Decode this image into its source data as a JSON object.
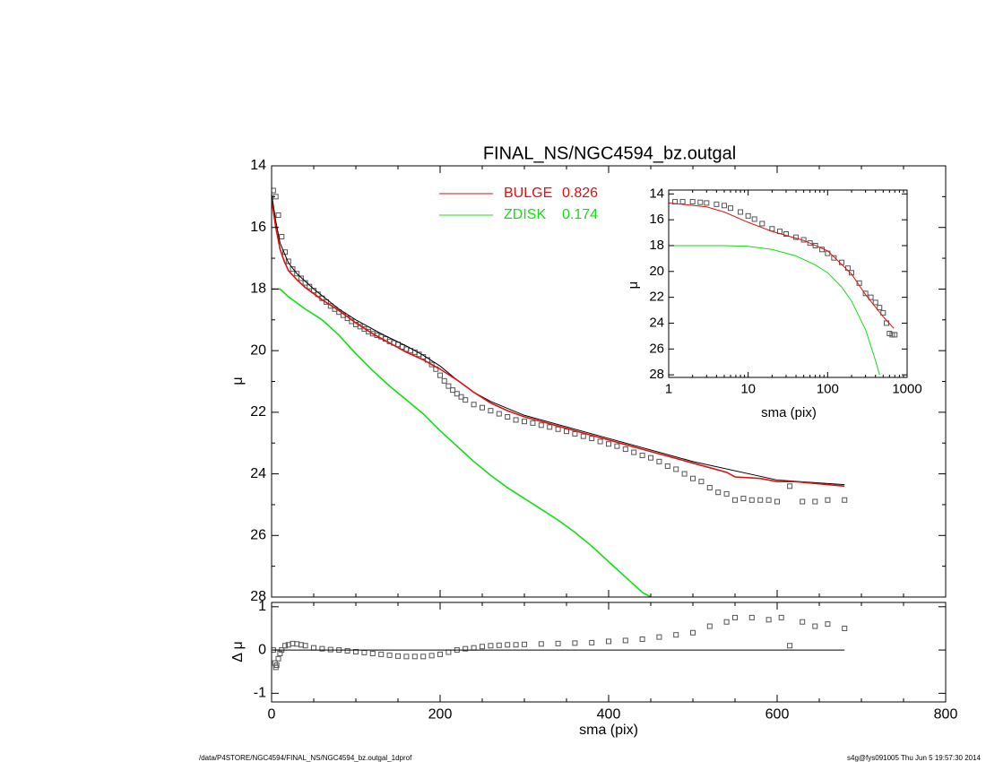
{
  "chart_data": [
    {
      "type": "line",
      "title": "FINAL_NS/NGC4594_bz.outgal",
      "ylabel": "μ",
      "xlim": [
        0,
        800
      ],
      "ylim": [
        28,
        14
      ],
      "xticks": [
        0,
        200,
        400,
        600,
        800
      ],
      "xtick_labels": false,
      "xminor": [
        50,
        100,
        150,
        250,
        300,
        350,
        450,
        500,
        550,
        650,
        700,
        750
      ],
      "yticks": [
        14,
        16,
        18,
        20,
        22,
        24,
        26,
        28
      ],
      "yminor": [
        15,
        17,
        19,
        21,
        23,
        25,
        27
      ],
      "legend": "top-center",
      "series": [
        {
          "style": "markers",
          "color": "#555555",
          "x": [
            2,
            5,
            8,
            12,
            16,
            20,
            25,
            30,
            35,
            40,
            45,
            50,
            55,
            60,
            65,
            70,
            75,
            80,
            85,
            90,
            95,
            100,
            105,
            110,
            115,
            120,
            125,
            130,
            135,
            140,
            145,
            150,
            155,
            160,
            165,
            170,
            175,
            180,
            185,
            190,
            195,
            200,
            205,
            210,
            215,
            220,
            225,
            230,
            240,
            250,
            260,
            270,
            280,
            290,
            300,
            310,
            320,
            330,
            340,
            350,
            360,
            370,
            380,
            390,
            400,
            410,
            420,
            430,
            440,
            450,
            460,
            470,
            480,
            490,
            500,
            510,
            520,
            530,
            540,
            550,
            560,
            570,
            580,
            590,
            600,
            615,
            630,
            645,
            660,
            680
          ],
          "values": [
            14.8,
            15.0,
            15.6,
            16.3,
            16.8,
            17.1,
            17.35,
            17.5,
            17.65,
            17.8,
            17.92,
            18.05,
            18.17,
            18.3,
            18.42,
            18.55,
            18.65,
            18.75,
            18.85,
            18.95,
            19.05,
            19.15,
            19.22,
            19.3,
            19.38,
            19.45,
            19.5,
            19.55,
            19.62,
            19.7,
            19.75,
            19.8,
            19.88,
            19.95,
            20.0,
            20.05,
            20.12,
            20.2,
            20.3,
            20.45,
            20.6,
            20.8,
            20.98,
            21.15,
            21.28,
            21.4,
            21.5,
            21.6,
            21.75,
            21.85,
            21.95,
            22.05,
            22.15,
            22.25,
            22.3,
            22.35,
            22.42,
            22.48,
            22.55,
            22.62,
            22.7,
            22.78,
            22.85,
            22.95,
            23.03,
            23.1,
            23.2,
            23.3,
            23.4,
            23.48,
            23.6,
            23.75,
            23.85,
            24.0,
            24.15,
            24.25,
            24.45,
            24.6,
            24.65,
            24.85,
            24.8,
            24.85,
            24.85,
            24.85,
            24.9,
            24.4,
            24.9,
            24.9,
            24.85,
            24.85
          ]
        },
        {
          "style": "line",
          "color": "#000000",
          "x": [
            0,
            5,
            10,
            20,
            30,
            50,
            80,
            100,
            130,
            160,
            180,
            200,
            220,
            240,
            260,
            300,
            400,
            500,
            600,
            680
          ],
          "values": [
            14.9,
            15.8,
            16.5,
            17.15,
            17.5,
            18.0,
            18.65,
            19.0,
            19.45,
            19.85,
            20.15,
            20.5,
            20.95,
            21.35,
            21.65,
            22.1,
            22.85,
            23.6,
            24.2,
            24.35
          ]
        },
        {
          "name": "BULGE",
          "fraction": 0.826,
          "style": "line",
          "color": "#e01010",
          "x": [
            0,
            5,
            10,
            15,
            20,
            30,
            40,
            50,
            60,
            80,
            100,
            120,
            140,
            160,
            180,
            200,
            220,
            240,
            260,
            280,
            300,
            320,
            340,
            360,
            380,
            400,
            420,
            440,
            460,
            480,
            500,
            520,
            540,
            550,
            580,
            600,
            620,
            640,
            660,
            680
          ],
          "values": [
            15.1,
            16.0,
            16.7,
            17.1,
            17.4,
            17.7,
            17.95,
            18.15,
            18.35,
            18.7,
            19.1,
            19.45,
            19.75,
            20.05,
            20.3,
            20.6,
            20.95,
            21.35,
            21.7,
            21.95,
            22.15,
            22.3,
            22.45,
            22.6,
            22.75,
            22.9,
            23.05,
            23.2,
            23.35,
            23.5,
            23.65,
            23.8,
            23.95,
            24.1,
            24.15,
            24.25,
            24.25,
            24.3,
            24.35,
            24.4
          ]
        },
        {
          "name": "ZDISK",
          "fraction": 0.174,
          "style": "line",
          "color": "#10e010",
          "x": [
            0,
            10,
            20,
            40,
            60,
            80,
            100,
            120,
            140,
            160,
            180,
            200,
            220,
            240,
            260,
            280,
            300,
            320,
            340,
            360,
            380,
            400,
            420,
            440,
            450
          ],
          "values": [
            18.0,
            18.0,
            18.25,
            18.65,
            19.0,
            19.5,
            20.1,
            20.65,
            21.15,
            21.6,
            22.05,
            22.6,
            23.1,
            23.6,
            24.05,
            24.45,
            24.8,
            25.15,
            25.5,
            25.9,
            26.35,
            26.85,
            27.35,
            27.85,
            28.0
          ]
        }
      ]
    },
    {
      "type": "scatter",
      "xlabel": "sma (pix)",
      "ylabel": "Δ μ",
      "xlim": [
        0,
        800
      ],
      "ylim": [
        -1.2,
        1.1
      ],
      "xticks": [
        0,
        200,
        400,
        600,
        800
      ],
      "xtick_labels": true,
      "xminor": [
        50,
        100,
        150,
        250,
        300,
        350,
        450,
        500,
        550,
        650,
        700,
        750
      ],
      "yticks": [
        -1,
        0,
        1
      ],
      "zero_line": 0,
      "series": [
        {
          "style": "markers",
          "color": "#555555",
          "x": [
            2,
            4,
            5,
            6,
            8,
            10,
            12,
            16,
            20,
            25,
            30,
            35,
            40,
            50,
            60,
            70,
            80,
            90,
            100,
            110,
            120,
            130,
            140,
            150,
            160,
            170,
            180,
            190,
            200,
            210,
            220,
            230,
            240,
            250,
            260,
            270,
            280,
            290,
            300,
            320,
            340,
            360,
            380,
            400,
            420,
            440,
            460,
            480,
            500,
            520,
            540,
            550,
            570,
            590,
            605,
            615,
            630,
            645,
            660,
            680
          ],
          "values": [
            0.0,
            -0.3,
            -0.4,
            -0.35,
            -0.2,
            -0.08,
            0.0,
            0.1,
            0.12,
            0.15,
            0.14,
            0.12,
            0.1,
            0.05,
            0.03,
            0.01,
            0.0,
            -0.02,
            -0.04,
            -0.06,
            -0.08,
            -0.1,
            -0.12,
            -0.14,
            -0.15,
            -0.15,
            -0.15,
            -0.13,
            -0.1,
            -0.05,
            0.0,
            0.03,
            0.05,
            0.08,
            0.1,
            0.11,
            0.12,
            0.12,
            0.13,
            0.14,
            0.15,
            0.16,
            0.17,
            0.2,
            0.22,
            0.25,
            0.3,
            0.35,
            0.4,
            0.55,
            0.65,
            0.75,
            0.75,
            0.7,
            0.75,
            0.1,
            0.65,
            0.55,
            0.6,
            0.5
          ]
        }
      ]
    },
    {
      "type": "line",
      "xlog": true,
      "xlabel": "sma (pix)",
      "ylabel": "μ",
      "xlim": [
        1,
        1000
      ],
      "ylim": [
        28.2,
        13.7
      ],
      "xticks": [
        1,
        10,
        100,
        1000
      ],
      "xtick_labels": true,
      "yticks": [
        14,
        16,
        18,
        20,
        22,
        24,
        26,
        28
      ],
      "series": [
        {
          "style": "markers",
          "color": "#555555",
          "x": [
            1.2,
            1.5,
            2,
            2.5,
            3,
            4,
            5,
            6,
            8,
            10,
            12,
            15,
            20,
            25,
            30,
            40,
            50,
            60,
            70,
            85,
            100,
            120,
            150,
            180,
            200,
            250,
            300,
            350,
            400,
            450,
            500,
            550,
            600,
            650,
            700
          ],
          "values": [
            14.6,
            14.6,
            14.6,
            14.65,
            14.7,
            14.8,
            14.9,
            15.1,
            15.4,
            15.7,
            15.95,
            16.3,
            16.7,
            16.9,
            17.1,
            17.35,
            17.55,
            17.8,
            18.0,
            18.3,
            18.6,
            18.95,
            19.3,
            19.75,
            20.1,
            20.9,
            21.7,
            22.0,
            22.4,
            22.8,
            23.2,
            24.0,
            24.8,
            24.9,
            24.9
          ]
        },
        {
          "style": "line",
          "color": "#e01010",
          "x": [
            1,
            3,
            5,
            10,
            20,
            50,
            100,
            200,
            300,
            500,
            680
          ],
          "values": [
            14.7,
            15.0,
            15.4,
            16.2,
            16.9,
            17.6,
            18.4,
            20.2,
            21.8,
            23.5,
            24.4
          ]
        },
        {
          "style": "line",
          "color": "#10e010",
          "x": [
            1,
            5,
            10,
            20,
            40,
            70,
            100,
            150,
            200,
            300,
            400,
            450
          ],
          "values": [
            18.0,
            18.0,
            18.05,
            18.3,
            18.8,
            19.5,
            20.1,
            21.2,
            22.3,
            24.5,
            26.9,
            28.0
          ]
        }
      ]
    }
  ],
  "footer": {
    "left": "/data/P4STORE/NGC4594/FINAL_NS/NGC4594_bz.outgal_1dprof",
    "right": "s4g@fys091005  Thu Jun  5 19:57:30 2014"
  }
}
